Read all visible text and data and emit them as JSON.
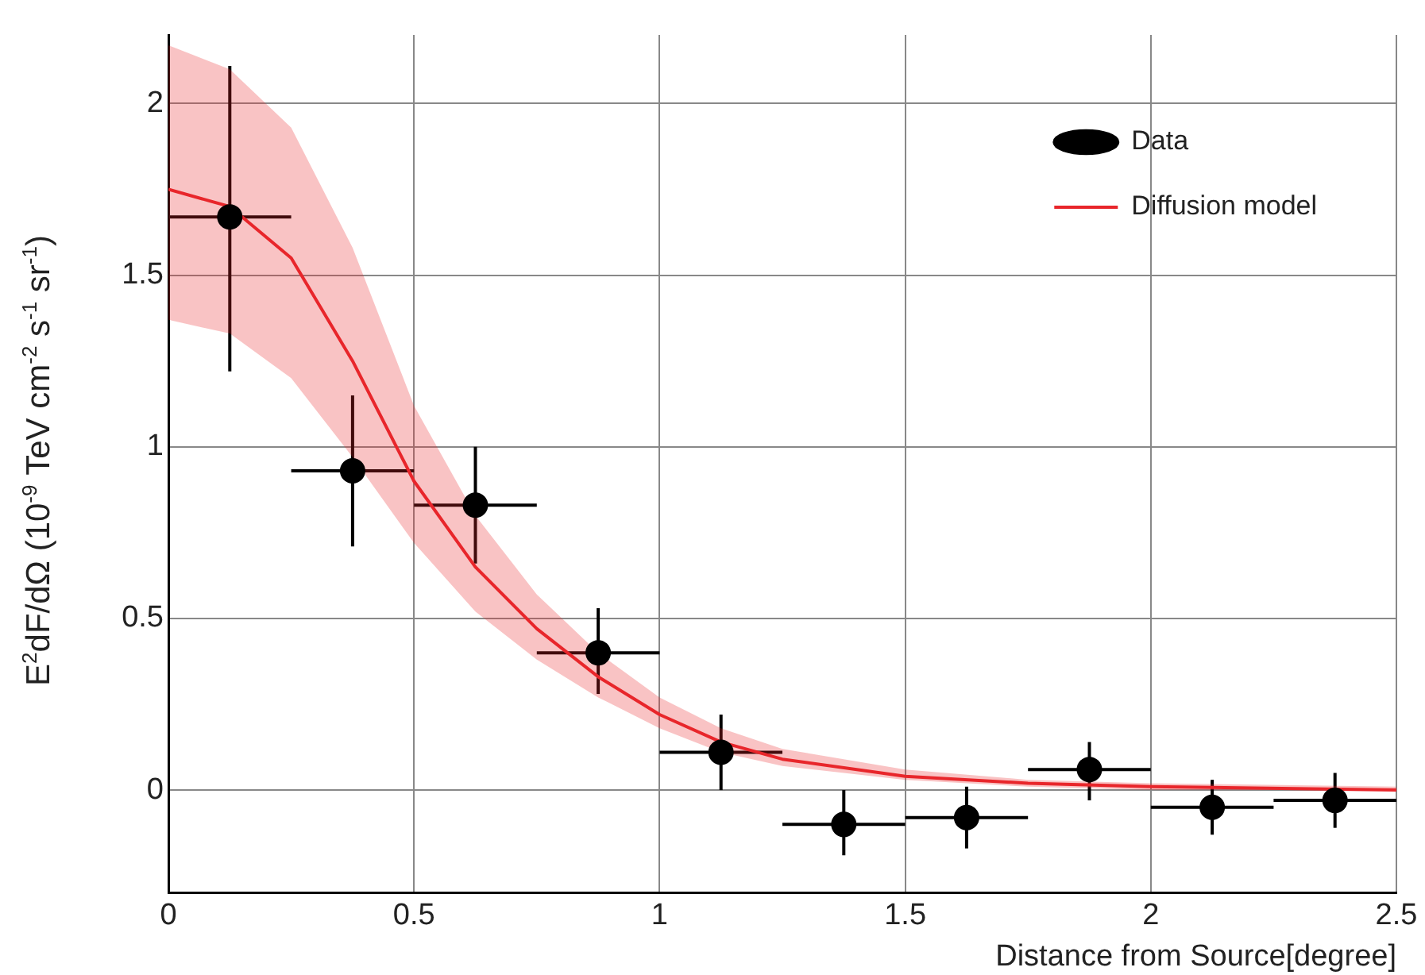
{
  "chart_data": {
    "type": "scatter",
    "xlabel": "Distance from Source[degree]",
    "ylabel": "E$^{2}$dF/dΩ (10$^{-9}$ TeV cm$^{-2}$ s$^{-1}$ sr$^{-1}$)",
    "xlim": [
      0,
      2.5
    ],
    "xticks": [
      0,
      0.5,
      1,
      1.5,
      2,
      2.5
    ],
    "ylim": [
      -0.3,
      2.2
    ],
    "yticks": [
      0,
      0.5,
      1,
      1.5,
      2
    ],
    "grid": true,
    "legend": "top right",
    "series": [
      {
        "name": "Data",
        "color": "#000000",
        "marker": "circle",
        "x": [
          0.125,
          0.375,
          0.625,
          0.875,
          1.125,
          1.375,
          1.625,
          1.875,
          2.125,
          2.375
        ],
        "values": [
          1.67,
          0.93,
          0.83,
          0.4,
          0.11,
          -0.1,
          -0.08,
          0.06,
          -0.05,
          -0.03
        ],
        "errors": [
          [
            1.22,
            2.11
          ],
          [
            0.71,
            1.15
          ],
          [
            0.66,
            1.0
          ],
          [
            0.28,
            0.53
          ],
          [
            0.0,
            0.22
          ],
          [
            -0.19,
            0.0
          ],
          [
            -0.17,
            0.01
          ],
          [
            -0.03,
            0.14
          ],
          [
            -0.13,
            0.03
          ],
          [
            -0.11,
            0.05
          ]
        ],
        "xerrors": [
          0.125,
          0.125,
          0.125,
          0.125,
          0.125,
          0.125,
          0.125,
          0.125,
          0.125,
          0.125
        ]
      },
      {
        "name": "Diffusion model",
        "type": "line",
        "color": "#e8262b",
        "marker": "none",
        "line_style": "solid",
        "x": [
          0,
          0.125,
          0.25,
          0.375,
          0.5,
          0.625,
          0.75,
          0.875,
          1.0,
          1.125,
          1.25,
          1.5,
          1.75,
          2.0,
          2.5
        ],
        "values": [
          1.75,
          1.7,
          1.55,
          1.25,
          0.9,
          0.65,
          0.47,
          0.33,
          0.22,
          0.14,
          0.09,
          0.04,
          0.02,
          0.01,
          0.0
        ],
        "lower": [
          1.37,
          1.33,
          1.2,
          0.97,
          0.72,
          0.52,
          0.38,
          0.27,
          0.18,
          0.11,
          0.07,
          0.03,
          0.01,
          0.0,
          0.0
        ],
        "upper": [
          2.17,
          2.1,
          1.93,
          1.58,
          1.12,
          0.8,
          0.57,
          0.4,
          0.27,
          0.18,
          0.12,
          0.06,
          0.03,
          0.02,
          0.01
        ]
      }
    ]
  }
}
